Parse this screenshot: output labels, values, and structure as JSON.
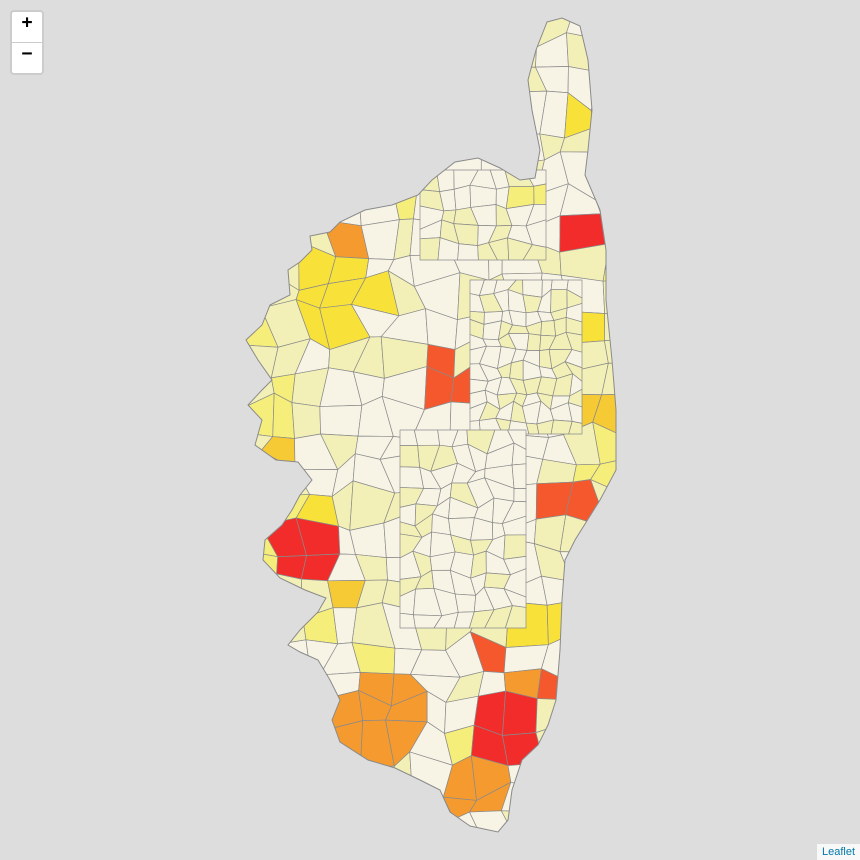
{
  "zoom": {
    "in_label": "+",
    "out_label": "−"
  },
  "attribution": {
    "link_text": "Leaflet"
  },
  "legend_colors": {
    "very_low": "#f7f4e6",
    "low": "#f2f0b6",
    "mid_low": "#f6ee7a",
    "mid": "#f8e23a",
    "mid_high": "#f6ca35",
    "high": "#f59a2f",
    "very_high": "#f5582c",
    "max": "#f22b2b"
  },
  "map": {
    "region": "Corse",
    "background": "#dddddd"
  }
}
